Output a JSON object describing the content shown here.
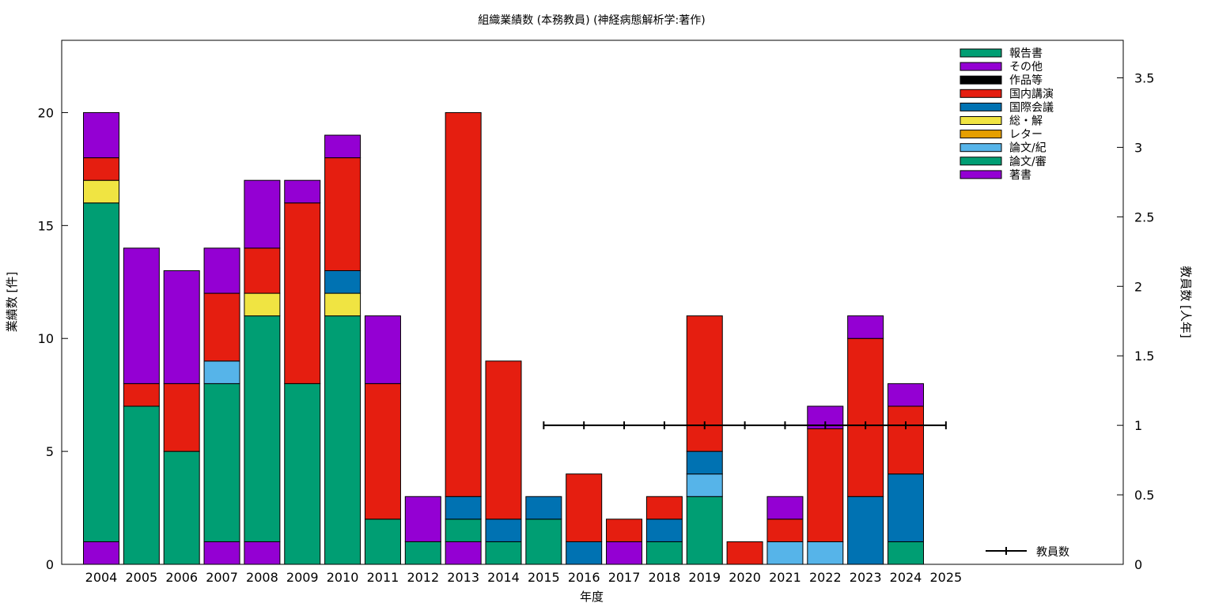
{
  "chart_data": {
    "type": "bar",
    "stacked": true,
    "title": "組織業績数 (本務教員) (神経病態解析学:著作)",
    "xlabel": "年度",
    "ylabel": "業績数 [件]",
    "y2label": "教員数 [人年]",
    "categories": [
      "2004",
      "2005",
      "2006",
      "2007",
      "2008",
      "2009",
      "2010",
      "2011",
      "2012",
      "2013",
      "2014",
      "2015",
      "2016",
      "2017",
      "2018",
      "2019",
      "2020",
      "2021",
      "2022",
      "2023",
      "2024",
      "2025"
    ],
    "ylim": [
      0,
      23.2
    ],
    "yticks": [
      0,
      5,
      10,
      15,
      20
    ],
    "y2lim": [
      0,
      3.77
    ],
    "y2ticks": [
      0,
      0.5,
      1,
      1.5,
      2,
      2.5,
      3,
      3.5
    ],
    "y2tick_labels": [
      "0",
      "0.5",
      "1",
      "1.5",
      "2",
      "2.5",
      "3",
      "3.5"
    ],
    "grid": false,
    "legend_position": "top-right",
    "series": [
      {
        "name": "著書",
        "color": "#9400D3",
        "values": [
          1,
          0,
          0,
          1,
          1,
          0,
          0,
          0,
          0,
          1,
          0,
          0,
          0,
          1,
          0,
          0,
          0,
          0,
          0,
          0,
          0,
          0
        ]
      },
      {
        "name": "論文/審",
        "color": "#009E73",
        "values": [
          15,
          7,
          5,
          7,
          10,
          8,
          11,
          2,
          1,
          1,
          1,
          2,
          0,
          0,
          1,
          3,
          0,
          0,
          0,
          0,
          1,
          0
        ]
      },
      {
        "name": "論文/紀",
        "color": "#56B4E9",
        "values": [
          0,
          0,
          0,
          1,
          0,
          0,
          0,
          0,
          0,
          0,
          0,
          0,
          0,
          0,
          0,
          1,
          0,
          1,
          1,
          0,
          0,
          0
        ]
      },
      {
        "name": "レター",
        "color": "#E69F00",
        "values": [
          0,
          0,
          0,
          0,
          0,
          0,
          0,
          0,
          0,
          0,
          0,
          0,
          0,
          0,
          0,
          0,
          0,
          0,
          0,
          0,
          0,
          0
        ]
      },
      {
        "name": "総・解",
        "color": "#F0E442",
        "values": [
          1,
          0,
          0,
          0,
          1,
          0,
          1,
          0,
          0,
          0,
          0,
          0,
          0,
          0,
          0,
          0,
          0,
          0,
          0,
          0,
          0,
          0
        ]
      },
      {
        "name": "国際会議",
        "color": "#0072B2",
        "values": [
          0,
          0,
          0,
          0,
          0,
          0,
          1,
          0,
          0,
          1,
          1,
          1,
          1,
          0,
          1,
          1,
          0,
          0,
          0,
          3,
          3,
          0
        ]
      },
      {
        "name": "国内講演",
        "color": "#E51E10",
        "values": [
          1,
          1,
          3,
          3,
          2,
          8,
          5,
          6,
          0,
          17,
          7,
          0,
          3,
          1,
          1,
          6,
          1,
          1,
          5,
          7,
          3,
          0
        ]
      },
      {
        "name": "作品等",
        "color": "#000000",
        "values": [
          0,
          0,
          0,
          0,
          0,
          0,
          0,
          0,
          0,
          0,
          0,
          0,
          0,
          0,
          0,
          0,
          0,
          0,
          0,
          0,
          0,
          0
        ]
      },
      {
        "name": "その他",
        "color": "#9400D3",
        "values": [
          2,
          6,
          5,
          2,
          3,
          1,
          1,
          3,
          2,
          0,
          0,
          0,
          0,
          0,
          0,
          0,
          0,
          1,
          1,
          1,
          1,
          0
        ]
      },
      {
        "name": "報告書",
        "color": "#009E73",
        "values": [
          0,
          0,
          0,
          0,
          0,
          0,
          0,
          0,
          0,
          0,
          0,
          0,
          0,
          0,
          0,
          0,
          0,
          0,
          0,
          0,
          0,
          0
        ]
      }
    ],
    "line_series": {
      "name": "教員数",
      "axis": "y2",
      "color": "#000000",
      "x": [
        "2015",
        "2016",
        "2017",
        "2018",
        "2019",
        "2020",
        "2021",
        "2022",
        "2023",
        "2024",
        "2025"
      ],
      "values": [
        1,
        1,
        1,
        1,
        1,
        1,
        1,
        1,
        1,
        1,
        1
      ]
    }
  }
}
